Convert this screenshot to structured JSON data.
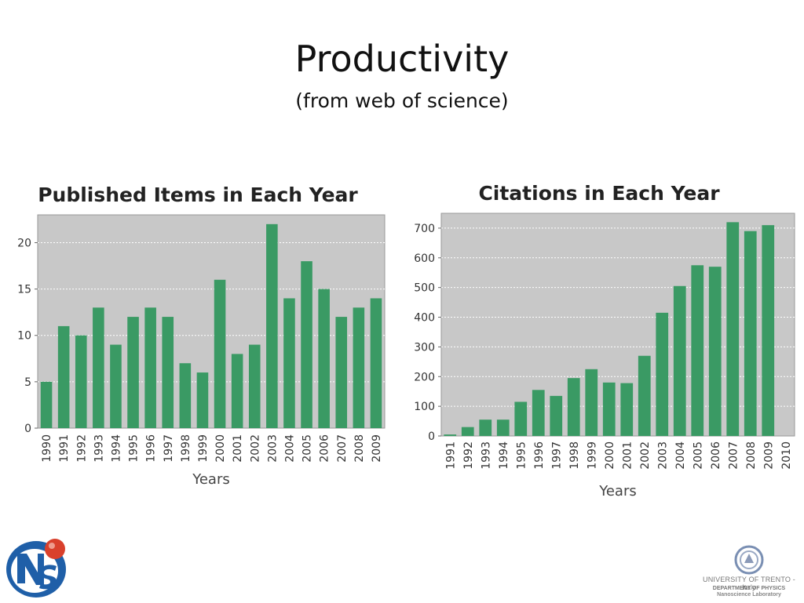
{
  "slide": {
    "title": "Productivity",
    "subtitle": "(from web of science)"
  },
  "chart_data": [
    {
      "type": "bar",
      "title": "Published Items in Each Year",
      "xlabel": "Years",
      "ylabel": "",
      "ylim": [
        0,
        23
      ],
      "yticks": [
        0,
        5,
        10,
        15,
        20
      ],
      "grid": true,
      "bar_color": "#3a9a64",
      "background": "#c8c8c8",
      "categories": [
        "1990",
        "1991",
        "1992",
        "1993",
        "1994",
        "1995",
        "1996",
        "1997",
        "1998",
        "1999",
        "2000",
        "2001",
        "2002",
        "2003",
        "2004",
        "2005",
        "2006",
        "2007",
        "2008",
        "2009"
      ],
      "values": [
        5,
        11,
        10,
        13,
        9,
        12,
        13,
        12,
        7,
        6,
        16,
        8,
        9,
        22,
        14,
        18,
        15,
        12,
        13,
        14
      ]
    },
    {
      "type": "bar",
      "title": "Citations in Each Year",
      "xlabel": "Years",
      "ylabel": "",
      "ylim": [
        0,
        750
      ],
      "yticks": [
        0,
        100,
        200,
        300,
        400,
        500,
        600,
        700
      ],
      "grid": true,
      "bar_color": "#3a9a64",
      "background": "#c8c8c8",
      "categories": [
        "1991",
        "1992",
        "1993",
        "1994",
        "1995",
        "1996",
        "1997",
        "1998",
        "1999",
        "2000",
        "2001",
        "2002",
        "2003",
        "2004",
        "2005",
        "2006",
        "2007",
        "2008",
        "2009",
        "2010"
      ],
      "values": [
        5,
        30,
        55,
        55,
        115,
        155,
        135,
        195,
        225,
        180,
        178,
        270,
        415,
        505,
        575,
        570,
        720,
        690,
        710,
        0
      ]
    }
  ],
  "logos": {
    "lab_logo_icon": "nls-logo-icon",
    "university_name": "UNIVERSITY OF TRENTO - Italy",
    "department": "DEPARTMENT OF PHYSICS",
    "laboratory": "Nanoscience Laboratory"
  }
}
